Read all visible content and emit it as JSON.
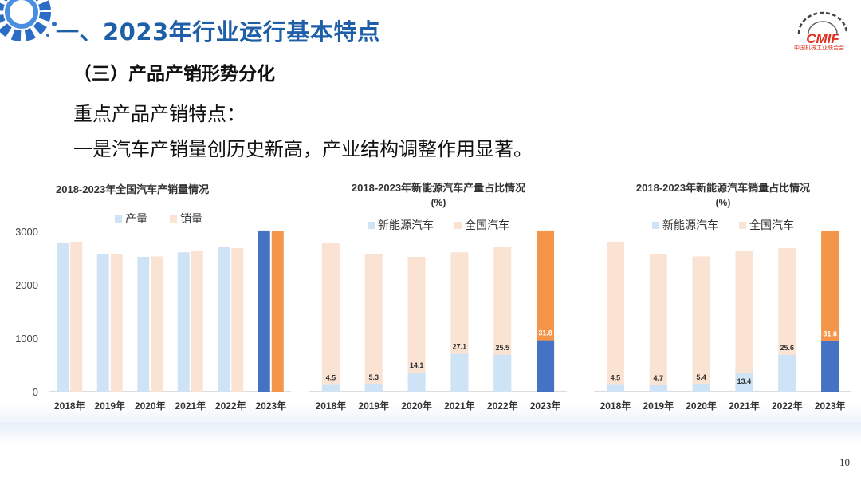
{
  "header": {
    "title": "一、2023年行业运行基本特点",
    "subtitle": "（三）产品产销形势分化",
    "line1": "重点产品产销特点：",
    "line2": "一是汽车产销量创历史新高，产业结构调整作用显著。",
    "logo_text": "CMIF",
    "logo_sub": "中国机械工业联合会"
  },
  "colors": {
    "title": "#1f5fa8",
    "light_blue": "#cfe3f7",
    "peach": "#fbe3d4",
    "dark_blue": "#4472c4",
    "orange": "#f4954a"
  },
  "chart_data": [
    {
      "type": "bar",
      "title": "2018-2023年全国汽车产销量情况",
      "categories": [
        "2018年",
        "2019年",
        "2020年",
        "2021年",
        "2022年",
        "2023年"
      ],
      "series": [
        {
          "name": "产量",
          "values": [
            2781,
            2572,
            2523,
            2608,
            2702,
            3016
          ]
        },
        {
          "name": "销量",
          "values": [
            2808,
            2577,
            2531,
            2627,
            2686,
            3009
          ]
        }
      ],
      "yticks": [
        "0",
        "1000",
        "2000",
        "3000"
      ],
      "ylim": [
        0,
        3000
      ]
    },
    {
      "type": "bar",
      "title": "2018-2023年新能源汽车产量占比情况",
      "title_unit": "(%)",
      "categories": [
        "2018年",
        "2019年",
        "2020年",
        "2021年",
        "2022年",
        "2023年"
      ],
      "series": [
        {
          "name": "新能源汽车",
          "values": [
            4.5,
            5.3,
            14.1,
            27.1,
            25.5,
            31.8
          ]
        },
        {
          "name": "全国汽车",
          "values": [
            100,
            100,
            100,
            100,
            100,
            100
          ]
        }
      ],
      "totals": [
        2781,
        2572,
        2523,
        2608,
        2702,
        3016
      ],
      "labels": [
        "4.5",
        "5.3",
        "14.1",
        "27.1",
        "25.5",
        "31.8"
      ]
    },
    {
      "type": "bar",
      "title": "2018-2023年新能源汽车销量占比情况",
      "title_unit": "(%)",
      "categories": [
        "2018年",
        "2019年",
        "2020年",
        "2021年",
        "2022年",
        "2023年"
      ],
      "series": [
        {
          "name": "新能源汽车",
          "values": [
            4.5,
            4.7,
            5.4,
            13.4,
            25.6,
            31.6
          ]
        },
        {
          "name": "全国汽车",
          "values": [
            100,
            100,
            100,
            100,
            100,
            100
          ]
        }
      ],
      "totals": [
        2808,
        2577,
        2531,
        2627,
        2686,
        3009
      ],
      "labels": [
        "4.5",
        "4.7",
        "5.4",
        "13.4",
        "25.6",
        "31.6"
      ]
    }
  ],
  "page_number": "10"
}
